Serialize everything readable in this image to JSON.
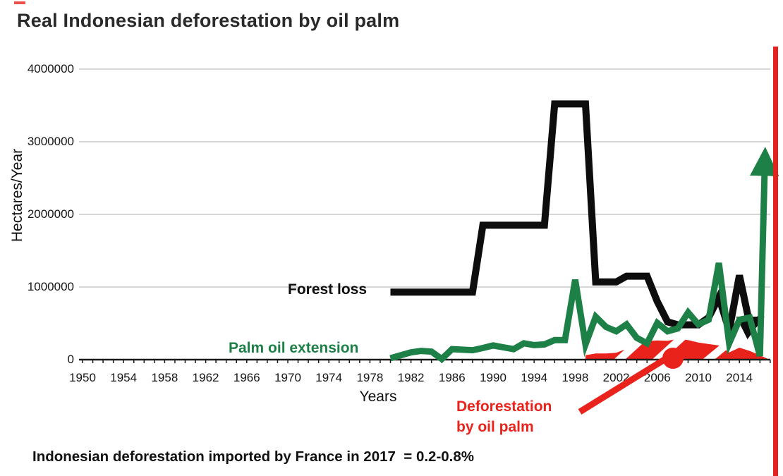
{
  "page": {
    "title": "Real Indonesian deforestation by oil palm",
    "caption": "Indonesian deforestation imported by France in 2017  = 0.2-0.8%"
  },
  "chart_data": {
    "type": "line",
    "title": "Real Indonesian deforestation by oil palm",
    "xlabel": "Years",
    "ylabel": "Hectares/Year",
    "xlim": [
      1950,
      2017.5
    ],
    "ylim": [
      0,
      4000000
    ],
    "grid": "horizontal gridlines at each 1000000",
    "legend_position": "inline labels on chart",
    "x_ticks": [
      1950,
      1954,
      1958,
      1962,
      1966,
      1970,
      1974,
      1978,
      1982,
      1986,
      1990,
      1994,
      1998,
      2002,
      2006,
      2010,
      2014
    ],
    "y_ticks": [
      4000000,
      3000000,
      2000000,
      1000000,
      0
    ],
    "series": [
      {
        "name": "Forest loss",
        "type": "line",
        "color": "#0d0d0d",
        "arrow_end": true,
        "points": [
          [
            1980,
            930000
          ],
          [
            1988,
            930000
          ],
          [
            1989,
            1850000
          ],
          [
            1995,
            1850000
          ],
          [
            1996,
            3520000
          ],
          [
            1999,
            3520000
          ],
          [
            2000,
            1070000
          ],
          [
            2002,
            1070000
          ],
          [
            2003,
            1150000
          ],
          [
            2005,
            1150000
          ],
          [
            2006,
            800000
          ],
          [
            2007,
            520000
          ],
          [
            2008,
            480000
          ],
          [
            2010,
            480000
          ],
          [
            2011,
            580000
          ],
          [
            2012,
            860000
          ],
          [
            2013,
            400000
          ],
          [
            2014,
            1160000
          ],
          [
            2015,
            490000
          ],
          [
            2016,
            560000
          ]
        ]
      },
      {
        "name": "Palm oil extension",
        "type": "line",
        "color": "#1d8047",
        "arrow_end": true,
        "points": [
          [
            1980,
            20000
          ],
          [
            1982,
            100000
          ],
          [
            1983,
            120000
          ],
          [
            1984,
            110000
          ],
          [
            1985,
            10000
          ],
          [
            1986,
            145000
          ],
          [
            1988,
            130000
          ],
          [
            1989,
            160000
          ],
          [
            1990,
            195000
          ],
          [
            1991,
            170000
          ],
          [
            1992,
            145000
          ],
          [
            1993,
            225000
          ],
          [
            1994,
            200000
          ],
          [
            1995,
            210000
          ],
          [
            1996,
            270000
          ],
          [
            1997,
            270000
          ],
          [
            1998,
            1100000
          ],
          [
            1999,
            210000
          ],
          [
            2000,
            590000
          ],
          [
            2001,
            450000
          ],
          [
            2002,
            390000
          ],
          [
            2003,
            485000
          ],
          [
            2004,
            300000
          ],
          [
            2005,
            225000
          ],
          [
            2006,
            505000
          ],
          [
            2007,
            390000
          ],
          [
            2008,
            430000
          ],
          [
            2009,
            650000
          ],
          [
            2010,
            485000
          ],
          [
            2011,
            550000
          ],
          [
            2012,
            1330000
          ],
          [
            2013,
            225000
          ],
          [
            2014,
            550000
          ],
          [
            2015,
            580000
          ],
          [
            2016,
            50000
          ],
          [
            2016.5,
            2850000
          ]
        ]
      },
      {
        "name": "Deforestation by oil palm",
        "type": "area",
        "color": "#e9221c",
        "points": [
          [
            1999,
            60000
          ],
          [
            2000,
            85000
          ],
          [
            2001,
            85000
          ],
          [
            2002,
            95000
          ],
          [
            2003,
            150000
          ],
          [
            2004,
            215000
          ],
          [
            2005,
            255000
          ],
          [
            2006,
            265000
          ],
          [
            2007,
            260000
          ],
          [
            2008,
            285000
          ],
          [
            2009,
            270000
          ],
          [
            2010,
            235000
          ],
          [
            2011,
            215000
          ],
          [
            2012,
            195000
          ],
          [
            2013,
            100000
          ],
          [
            2014,
            165000
          ],
          [
            2015,
            120000
          ],
          [
            2016,
            60000
          ],
          [
            2016.7,
            15000
          ]
        ]
      }
    ],
    "annotations": {
      "forest_loss": "Forest loss",
      "palm_oil": "Palm oil extension",
      "deforestation_line1": "Deforestation",
      "deforestation_line2": "by oil palm"
    }
  },
  "colors": {
    "forest_loss": "#0d0d0d",
    "palm_oil": "#1d8047",
    "deforestation": "#e9221c",
    "gridline": "#c9c9c9",
    "axis": "#1a1a1a",
    "right_bar": "#e5231e"
  }
}
